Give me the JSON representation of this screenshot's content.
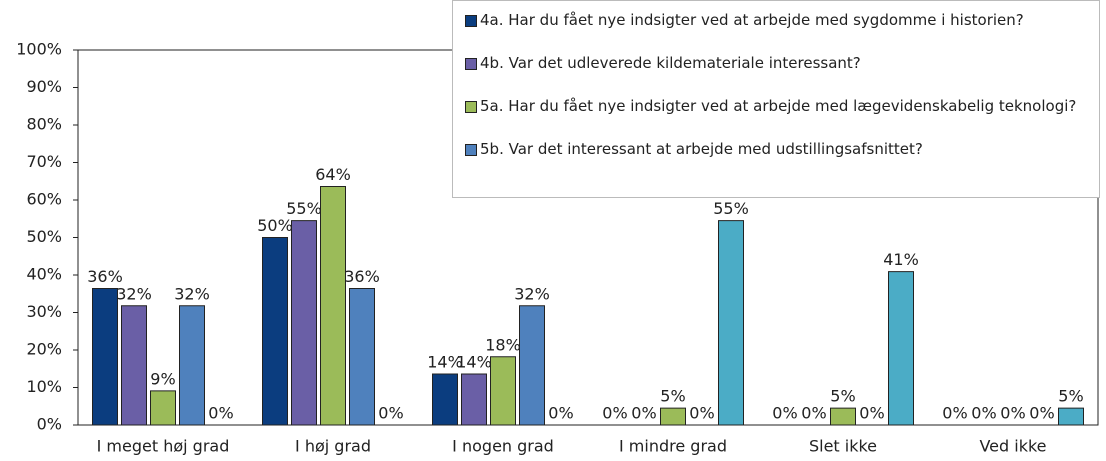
{
  "chart_data": {
    "type": "bar",
    "categories": [
      "I meget høj grad",
      "I høj grad",
      "I nogen grad",
      "I mindre grad",
      "Slet ikke",
      "Ved ikke"
    ],
    "series": [
      {
        "name": "4a. Har du fået nye indsigter ved at arbejde med sygdomme i historien?",
        "color": "#0b3d7f",
        "values": [
          36.4,
          50,
          13.6,
          0,
          0,
          0
        ],
        "value_labels": [
          "36%",
          "50%",
          "14%",
          "0%",
          "0%",
          "0%"
        ]
      },
      {
        "name": "4b. Var det udleverede kildemateriale interessant?",
        "color": "#6a5fa6",
        "values": [
          31.8,
          54.5,
          13.6,
          0,
          0,
          0
        ],
        "value_labels": [
          "32%",
          "55%",
          "14%",
          "0%",
          "0%",
          "0%"
        ]
      },
      {
        "name": "5a. Har du fået nye indsigter ved at arbejde med lægevidenskabelig teknologi?",
        "color": "#9bbb59",
        "values": [
          9.1,
          63.6,
          18.2,
          4.5,
          4.5,
          0
        ],
        "value_labels": [
          "9%",
          "64%",
          "18%",
          "5%",
          "5%",
          "0%"
        ]
      },
      {
        "name": "5b. Var det interessant at arbejde med udstillingsafsnittet?",
        "color": "#4f81bd",
        "values": [
          31.8,
          36.4,
          31.8,
          0,
          0,
          0
        ],
        "value_labels": [
          "32%",
          "36%",
          "32%",
          "0%",
          "0%",
          "0%"
        ]
      },
      {
        "color": "#4bacc6",
        "values": [
          0,
          0,
          0,
          54.5,
          40.9,
          4.5
        ],
        "value_labels": [
          "0%",
          "0%",
          "0%",
          "55%",
          "41%",
          "5%"
        ]
      }
    ],
    "ylim": [
      0,
      100
    ],
    "yticks": [
      {
        "value": 0,
        "label": "0%"
      },
      {
        "value": 10,
        "label": "10%"
      },
      {
        "value": 20,
        "label": "20%"
      },
      {
        "value": 30,
        "label": "30%"
      },
      {
        "value": 40,
        "label": "40%"
      },
      {
        "value": 50,
        "label": "50%"
      },
      {
        "value": 60,
        "label": "60%"
      },
      {
        "value": 70,
        "label": "70%"
      },
      {
        "value": 80,
        "label": "80%"
      },
      {
        "value": 90,
        "label": "90%"
      },
      {
        "value": 100,
        "label": "100%"
      }
    ],
    "legend": "upper right"
  }
}
